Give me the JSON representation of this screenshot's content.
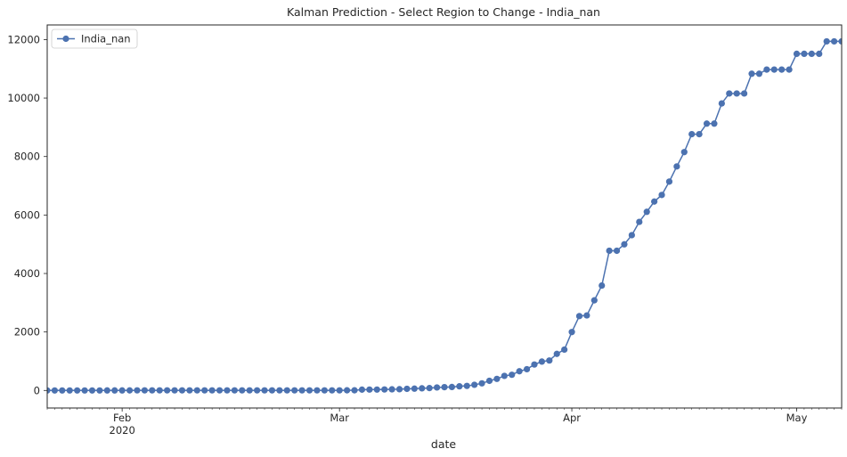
{
  "chart_data": {
    "type": "line",
    "title": "Kalman Prediction - Select Region to Change - India_nan",
    "xlabel": "date",
    "ylabel": "",
    "x_start": "2020-01-22",
    "x_end": "2020-05-07",
    "x": [
      "2020-01-22",
      "2020-01-23",
      "2020-01-24",
      "2020-01-25",
      "2020-01-26",
      "2020-01-27",
      "2020-01-28",
      "2020-01-29",
      "2020-01-30",
      "2020-01-31",
      "2020-02-01",
      "2020-02-02",
      "2020-02-03",
      "2020-02-04",
      "2020-02-05",
      "2020-02-06",
      "2020-02-07",
      "2020-02-08",
      "2020-02-09",
      "2020-02-10",
      "2020-02-11",
      "2020-02-12",
      "2020-02-13",
      "2020-02-14",
      "2020-02-15",
      "2020-02-16",
      "2020-02-17",
      "2020-02-18",
      "2020-02-19",
      "2020-02-20",
      "2020-02-21",
      "2020-02-22",
      "2020-02-23",
      "2020-02-24",
      "2020-02-25",
      "2020-02-26",
      "2020-02-27",
      "2020-02-28",
      "2020-02-29",
      "2020-03-01",
      "2020-03-02",
      "2020-03-03",
      "2020-03-04",
      "2020-03-05",
      "2020-03-06",
      "2020-03-07",
      "2020-03-08",
      "2020-03-09",
      "2020-03-10",
      "2020-03-11",
      "2020-03-12",
      "2020-03-13",
      "2020-03-14",
      "2020-03-15",
      "2020-03-16",
      "2020-03-17",
      "2020-03-18",
      "2020-03-19",
      "2020-03-20",
      "2020-03-21",
      "2020-03-22",
      "2020-03-23",
      "2020-03-24",
      "2020-03-25",
      "2020-03-26",
      "2020-03-27",
      "2020-03-28",
      "2020-03-29",
      "2020-03-30",
      "2020-03-31",
      "2020-04-01",
      "2020-04-02",
      "2020-04-03",
      "2020-04-04",
      "2020-04-05",
      "2020-04-06",
      "2020-04-07",
      "2020-04-08",
      "2020-04-09",
      "2020-04-10",
      "2020-04-11",
      "2020-04-12",
      "2020-04-13",
      "2020-04-14",
      "2020-04-15",
      "2020-04-16",
      "2020-04-17",
      "2020-04-18",
      "2020-04-19",
      "2020-04-20",
      "2020-04-21",
      "2020-04-22",
      "2020-04-23",
      "2020-04-24",
      "2020-04-25",
      "2020-04-26",
      "2020-04-27",
      "2020-04-28",
      "2020-04-29",
      "2020-04-30",
      "2020-05-01",
      "2020-05-02",
      "2020-05-03",
      "2020-05-04",
      "2020-05-05",
      "2020-05-06",
      "2020-05-07"
    ],
    "series": [
      {
        "name": "India_nan",
        "color": "#4c72b0",
        "marker": "circle",
        "values": [
          0,
          0,
          0,
          0,
          0,
          0,
          0,
          0,
          1,
          1,
          1,
          2,
          3,
          3,
          3,
          3,
          3,
          3,
          3,
          3,
          3,
          3,
          3,
          3,
          3,
          3,
          3,
          3,
          3,
          3,
          3,
          3,
          3,
          3,
          3,
          3,
          3,
          3,
          3,
          3,
          5,
          6,
          28,
          30,
          31,
          34,
          39,
          43,
          56,
          62,
          73,
          82,
          102,
          113,
          119,
          142,
          156,
          194,
          244,
          330,
          396,
          499,
          536,
          657,
          727,
          887,
          987,
          1024,
          1251,
          1397,
          1998,
          2543,
          2567,
          3082,
          3588,
          4778,
          4778,
          4997,
          5311,
          5765,
          6109,
          6460,
          6686,
          7143,
          7661,
          8152,
          8765,
          8765,
          9125,
          9125,
          9816,
          10156,
          10156,
          10156,
          10831,
          10831,
          10974,
          10974,
          10974,
          10974,
          11513,
          11513,
          11513,
          11513,
          11939,
          11939,
          11939
        ]
      }
    ],
    "x_ticks": [
      {
        "date": "2020-02-01",
        "label": "Feb",
        "sublabel": "2020"
      },
      {
        "date": "2020-03-01",
        "label": "Mar",
        "sublabel": ""
      },
      {
        "date": "2020-04-01",
        "label": "Apr",
        "sublabel": ""
      },
      {
        "date": "2020-05-01",
        "label": "May",
        "sublabel": ""
      }
    ],
    "y_ticks": [
      0,
      2000,
      4000,
      6000,
      8000,
      10000,
      12000
    ],
    "ylim": [
      -600,
      12500
    ],
    "grid": false,
    "legend": {
      "position": "top-left",
      "entries": [
        "India_nan"
      ]
    }
  }
}
